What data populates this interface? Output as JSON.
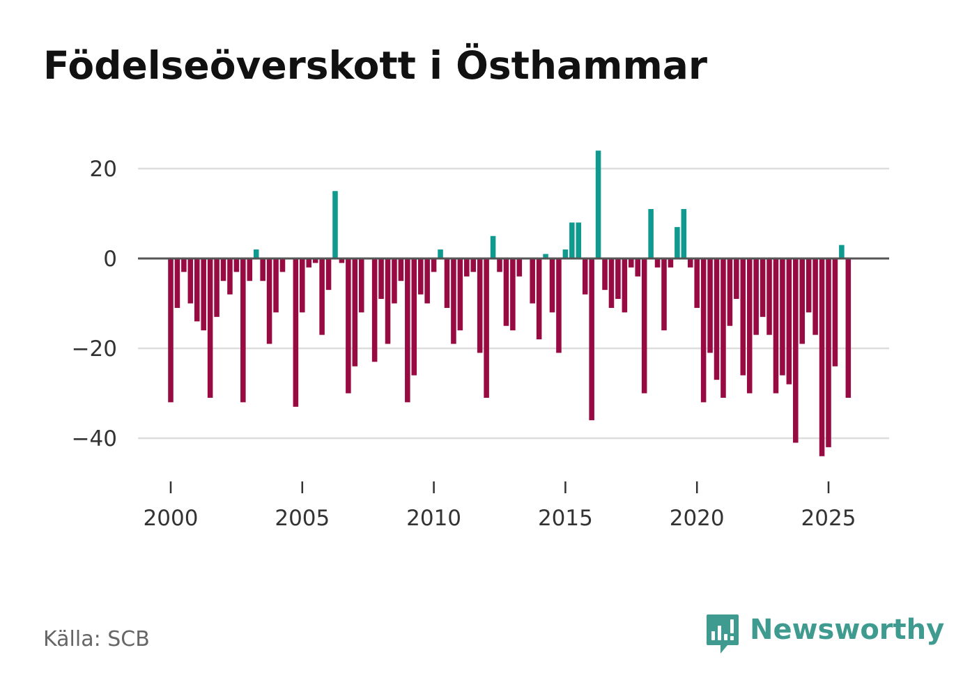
{
  "title": "Födelseöverskott i Östhammar",
  "source": "Källa: SCB",
  "brand": {
    "name": "Newsworthy",
    "icon": "newsworthy-logo-icon"
  },
  "colors": {
    "positive": "#0f9a8f",
    "negative": "#970b42",
    "zero_line": "#555555",
    "grid": "#dddddd",
    "brand": "#3f9a8f"
  },
  "chart_data": {
    "type": "bar",
    "title": "Födelseöverskott i Östhammar",
    "xlabel": "",
    "ylabel": "",
    "x_start": 2000.0,
    "x_step": 0.25,
    "x_ticks": [
      2000,
      2005,
      2010,
      2015,
      2020,
      2025
    ],
    "x_tick_labels": [
      "2000",
      "2005",
      "2010",
      "2015",
      "2020",
      "2025"
    ],
    "xlim": [
      1998.8,
      2027.4
    ],
    "y_ticks": [
      20,
      0,
      -20,
      -40
    ],
    "y_tick_labels": [
      "20",
      "0",
      "−20",
      "−40"
    ],
    "ylim": [
      -49,
      29
    ],
    "grid": true,
    "values": [
      -32,
      -11,
      -3,
      -10,
      -14,
      -16,
      -31,
      -13,
      -5,
      -8,
      -3,
      -32,
      -5,
      2,
      -5,
      -19,
      -12,
      -3,
      0,
      -33,
      -12,
      -2,
      -1,
      -17,
      -7,
      15,
      -1,
      -30,
      -24,
      -12,
      0,
      -23,
      -9,
      -19,
      -10,
      -5,
      -32,
      -26,
      -8,
      -10,
      -3,
      2,
      -11,
      -19,
      -16,
      -4,
      -3,
      -21,
      -31,
      5,
      -3,
      -15,
      -16,
      -4,
      0,
      -10,
      -18,
      1,
      -12,
      -21,
      2,
      8,
      8,
      -8,
      -36,
      24,
      -7,
      -11,
      -9,
      -12,
      -2,
      -4,
      -30,
      11,
      -2,
      -16,
      -2,
      7,
      11,
      -2,
      -11,
      -32,
      -21,
      -27,
      -31,
      -15,
      -9,
      -26,
      -30,
      -17,
      -13,
      -17,
      -30,
      -26,
      -28,
      -41,
      -19,
      -12,
      -17,
      -44,
      -42,
      -24,
      3,
      -31
    ]
  }
}
